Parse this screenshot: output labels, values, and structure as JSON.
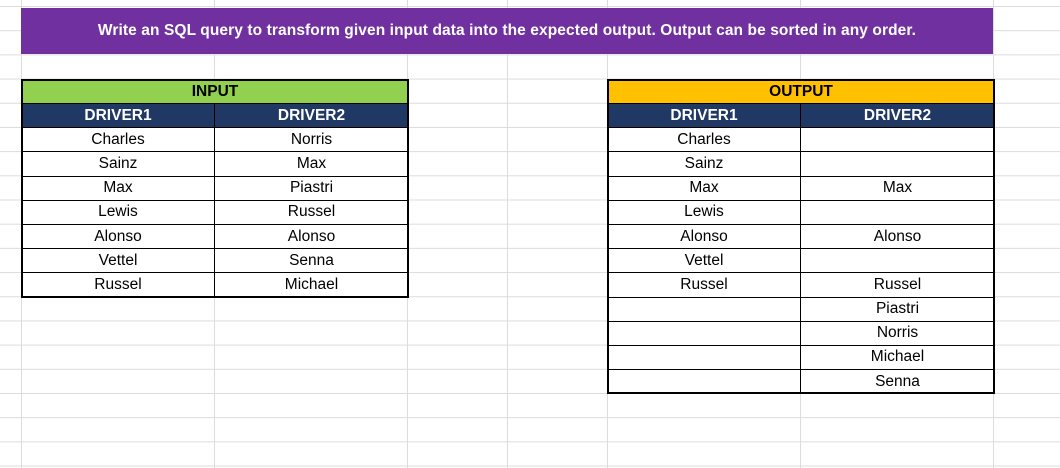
{
  "banner": {
    "text": "Write an SQL query to transform given input data into the expected output. Output can be sorted in any order."
  },
  "colors": {
    "banner_bg": "#7030a0",
    "input_title_bg": "#92d050",
    "output_title_bg": "#ffc000",
    "header_bg": "#1f3864"
  },
  "input": {
    "title": "INPUT",
    "columns": [
      "DRIVER1",
      "DRIVER2"
    ],
    "rows": [
      [
        "Charles",
        "Norris"
      ],
      [
        "Sainz",
        "Max"
      ],
      [
        "Max",
        "Piastri"
      ],
      [
        "Lewis",
        "Russel"
      ],
      [
        "Alonso",
        "Alonso"
      ],
      [
        "Vettel",
        "Senna"
      ],
      [
        "Russel",
        "Michael"
      ]
    ]
  },
  "output": {
    "title": "OUTPUT",
    "columns": [
      "DRIVER1",
      "DRIVER2"
    ],
    "rows": [
      [
        "Charles",
        ""
      ],
      [
        "Sainz",
        ""
      ],
      [
        "Max",
        "Max"
      ],
      [
        "Lewis",
        ""
      ],
      [
        "Alonso",
        "Alonso"
      ],
      [
        "Vettel",
        ""
      ],
      [
        "Russel",
        "Russel"
      ],
      [
        "",
        "Piastri"
      ],
      [
        "",
        "Norris"
      ],
      [
        "",
        "Michael"
      ],
      [
        "",
        "Senna"
      ]
    ]
  }
}
